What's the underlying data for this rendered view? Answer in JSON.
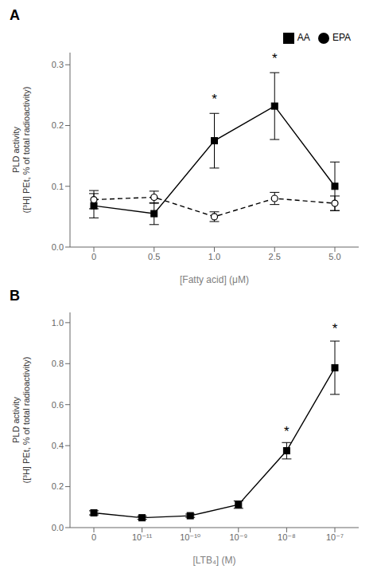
{
  "chart_data": [
    {
      "type": "line",
      "title": "A",
      "x_label": "[Fatty acid] (μM)",
      "y_label": "PLD activity\n([³H] PEt, % of total radioactivity)",
      "categories": [
        "0",
        "0.5",
        "1.0",
        "2.5",
        "5.0"
      ],
      "series": [
        {
          "name": "AA",
          "color": "#000000",
          "marker": "square",
          "line_style": "solid",
          "values": [
            0.068,
            0.055,
            0.175,
            0.232,
            0.1
          ],
          "yerr": [
            0.02,
            0.018,
            0.045,
            0.055,
            0.04
          ]
        },
        {
          "name": "EPA",
          "color": "#000000",
          "marker": "circle",
          "line_style": "dashed",
          "values": [
            0.078,
            0.082,
            0.05,
            0.08,
            0.072
          ],
          "yerr": [
            0.015,
            0.01,
            0.008,
            0.01,
            0.012
          ]
        }
      ],
      "annotations": [
        {
          "text": "*",
          "x": "1.0",
          "y": 0.228
        },
        {
          "text": "*",
          "x": "2.5",
          "y": 0.295
        }
      ],
      "ylim": [
        0,
        0.32
      ],
      "yticks": [
        {
          "value": 0,
          "label": "0.0"
        },
        0.1,
        0.2,
        0.3
      ],
      "legend": "upper right",
      "grid": false
    },
    {
      "type": "line",
      "title": "B",
      "x_label": "[LTB₄] (M)",
      "y_label": "PLD activity\n([³H] PEt, % of total radioactivity)",
      "categories": [
        "0",
        "10⁻¹¹",
        "10⁻¹⁰",
        "10⁻⁹",
        "10⁻⁸",
        "10⁻⁷"
      ],
      "series": [
        {
          "color": "#000000",
          "marker": "square",
          "line_style": "solid",
          "values": [
            0.072,
            0.048,
            0.058,
            0.112,
            0.375,
            0.78
          ],
          "yerr": [
            0.01,
            0.008,
            0.008,
            0.018,
            0.04,
            0.13
          ]
        }
      ],
      "annotations": [
        {
          "text": "*",
          "x": "10⁻⁸",
          "y": 0.425
        },
        {
          "text": "*",
          "x": "10⁻⁷",
          "y": 0.925
        }
      ],
      "ylim": [
        0,
        1.05
      ],
      "yticks": [
        {
          "value": 0,
          "label": "0.0"
        },
        0.2,
        0.4,
        0.6,
        0.8,
        {
          "value": 1,
          "label": "1.0"
        }
      ],
      "grid": false
    }
  ]
}
